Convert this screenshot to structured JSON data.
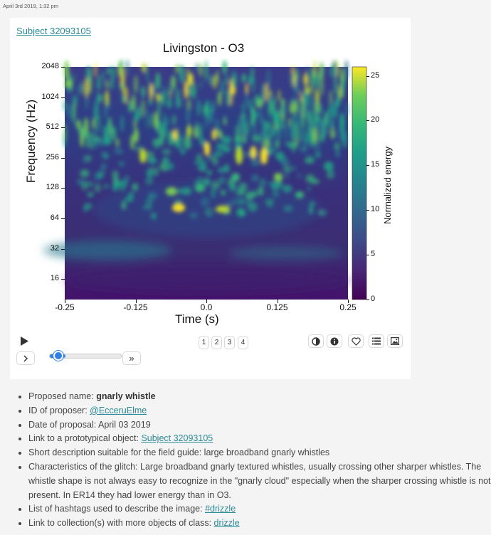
{
  "post": {
    "timestamp": "April 3rd 2019, 1:32 pm"
  },
  "subject": {
    "link_text": "Subject 32093105",
    "plot_title": "Livingston - O3"
  },
  "chart_data": {
    "type": "heatmap",
    "title": "Livingston - O3",
    "xlabel": "Time (s)",
    "ylabel": "Frequency (Hz)",
    "colorbar_label": "Normalized energy",
    "x_ticks": [
      "-0.25",
      "-0.125",
      "0.0",
      "0.125",
      "0.25"
    ],
    "y_ticks": [
      "2048",
      "1024",
      "512",
      "256",
      "128",
      "64",
      "32",
      "16"
    ],
    "colorbar_ticks": [
      "0",
      "5",
      "10",
      "15",
      "20",
      "25"
    ],
    "xlim": [
      -0.25,
      0.25
    ],
    "ylim": [
      10,
      2048
    ],
    "yscale": "log",
    "clim": [
      0,
      26
    ],
    "colormap": "viridis"
  },
  "controls": {
    "play_icon": "play-icon",
    "next_icon": "chevron-right-icon",
    "fast_forward_label": "»",
    "pages": [
      "1",
      "2",
      "3",
      "4"
    ],
    "slider_value_pct": 22,
    "tools": [
      "contrast-icon",
      "info-icon",
      "heart-icon",
      "list-icon",
      "image-icon"
    ]
  },
  "details": {
    "proposed_name_label": "Proposed name: ",
    "proposed_name": "gnarly whistle",
    "proposer_label": "ID of proposer: ",
    "proposer": "@EcceruElme",
    "date_label": "Date of proposal: April 03 2019",
    "proto_label": "Link to a prototypical object: ",
    "proto_link": "Subject 32093105",
    "short_desc": "Short description suitable for the field guide: large broadband gnarly whistles",
    "characteristics": "Characteristics of the glitch: Large broadband gnarly textured whistles, usually crossing other sharper whistles. The whistle shape is not always easy to recognize in the \"gnarly cloud\" especially when the sharper crossing whistle is not present. In ER14 they had lower energy than in O3.",
    "hashtags_label": "List of hashtags used to describe the image: ",
    "hashtag": "#drizzle",
    "collection_label": "Link to collection(s) with more objects of class: ",
    "collection": "drizzle"
  },
  "colors": {
    "link": "#2a8a95",
    "slider": "#2f7fe8"
  }
}
